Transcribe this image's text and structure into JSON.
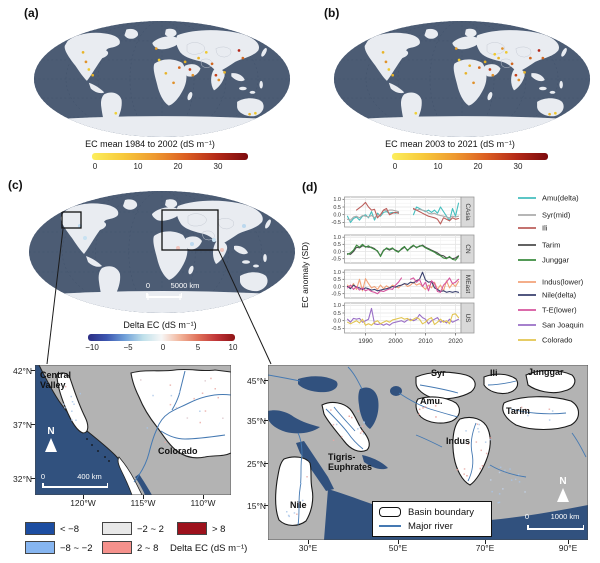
{
  "figure": {
    "panel_a": {
      "tag": "(a)",
      "caption": "EC mean 1984 to 2002 (dS m⁻¹)",
      "cbar_ticks": [
        "0",
        "10",
        "20",
        "30"
      ]
    },
    "panel_b": {
      "tag": "(b)",
      "caption": "EC mean 2003 to 2021 (dS m⁻¹)",
      "cbar_ticks": [
        "0",
        "10",
        "20",
        "30"
      ]
    },
    "panel_c": {
      "tag": "(c)",
      "caption": "Delta EC (dS m⁻¹)",
      "cbar_ticks": [
        "−10",
        "−5",
        "0",
        "5",
        "10"
      ],
      "scalebar_zero": "0",
      "scalebar_label": "5000 km"
    },
    "panel_d": {
      "tag": "(d)",
      "ylabel": "EC anomaly (SD)"
    }
  },
  "chart_data": {
    "type": "line",
    "ylabel": "EC anomaly (SD)",
    "x": [
      1984,
      1985,
      1986,
      1987,
      1988,
      1989,
      1990,
      1991,
      1992,
      1993,
      1994,
      1995,
      1996,
      1997,
      1998,
      1999,
      2000,
      2001,
      2002,
      2003,
      2004,
      2005,
      2006,
      2007,
      2008,
      2009,
      2010,
      2011,
      2012,
      2013,
      2014,
      2015,
      2016,
      2017,
      2018,
      2019,
      2020,
      2021
    ],
    "xticks": [
      1990,
      2000,
      2010,
      2020
    ],
    "yticks": [
      1.0,
      0.5,
      0.0,
      -0.5
    ],
    "ylim": [
      -0.8,
      1.15
    ],
    "xlim": [
      1983,
      2022
    ],
    "legend_position": "right",
    "grid": true,
    "facets": [
      {
        "strip": "CAsia",
        "series": [
          {
            "name": "Amu(delta)",
            "color": "#45BEBE",
            "values": [
              -0.1,
              -0.5,
              -0.25,
              -0.15,
              -0.35,
              -0.1,
              0.0,
              -0.2,
              0.2,
              -0.35,
              0.1,
              -0.1,
              0.15,
              0.2,
              0.1,
              0.15,
              0.1,
              0.15,
              null,
              null,
              null,
              null,
              0.0,
              0.5,
              0.4,
              0.3,
              0.2,
              0.3,
              0.15,
              0.3,
              0.1,
              0.5,
              0.2,
              -0.1,
              -0.4,
              0.4,
              -0.1,
              0.75
            ]
          },
          {
            "name": "Syr(mid)",
            "color": "#ABABAB",
            "values": [
              -0.3,
              -0.35,
              -0.15,
              -0.1,
              -0.2,
              -0.05,
              -0.1,
              -0.15,
              -0.05,
              -0.2,
              0.0,
              -0.05,
              0.3,
              0.25,
              0.3,
              0.3,
              0.25,
              0.2,
              null,
              null,
              null,
              null,
              0.35,
              0.3,
              0.35,
              0.3,
              0.25,
              0.1,
              0.05,
              0.1,
              0.0,
              -0.05,
              -0.1,
              -0.15,
              -0.2,
              -0.1,
              -0.15,
              -0.1
            ]
          },
          {
            "name": "Ili",
            "color": "#BC5F5C",
            "values": [
              null,
              null,
              null,
              0.3,
              0.45,
              0.6,
              0.8,
              0.5,
              0.3,
              0.35,
              -0.2,
              0.0,
              0.3,
              0.4,
              0.0,
              0.1,
              0.15,
              0.1,
              null,
              null,
              null,
              null,
              0.4,
              0.3,
              0.2,
              0.1,
              0.0,
              -0.1,
              -0.15,
              -0.2,
              -0.3,
              -0.6,
              -0.2,
              -0.3,
              -0.4,
              -0.2,
              -0.3,
              -0.25
            ]
          }
        ]
      },
      {
        "strip": "CN",
        "series": [
          {
            "name": "Tarim",
            "color": "#4D4D4D",
            "values": [
              -0.15,
              -0.2,
              0.0,
              0.3,
              0.25,
              0.4,
              0.35,
              0.3,
              0.3,
              0.2,
              0.0,
              -0.3,
              0.1,
              0.2,
              0.1,
              0.2,
              0.1,
              0.0,
              0.15,
              0.3,
              0.1,
              0.25,
              0.4,
              0.3,
              0.35,
              0.45,
              0.3,
              0.2,
              0.1,
              0.0,
              -0.1,
              -0.25,
              -0.3,
              -0.45,
              -0.4,
              -0.5,
              -0.45,
              -0.3
            ]
          },
          {
            "name": "Junggar",
            "color": "#3B8C3F",
            "values": [
              -0.2,
              -0.1,
              0.1,
              0.45,
              0.3,
              0.5,
              0.3,
              0.4,
              0.25,
              0.15,
              0.05,
              -0.35,
              0.05,
              0.25,
              0.15,
              0.25,
              0.05,
              -0.05,
              0.2,
              0.35,
              0.05,
              0.3,
              0.45,
              0.25,
              0.4,
              0.4,
              0.25,
              0.15,
              0.05,
              -0.05,
              -0.2,
              -0.3,
              -0.45,
              -0.5,
              -0.35,
              -0.55,
              -0.6,
              -0.35
            ]
          }
        ]
      },
      {
        "strip": "MEast",
        "series": [
          {
            "name": "Indus(lower)",
            "color": "#F2A379",
            "values": [
              0.1,
              -0.1,
              0.2,
              -0.2,
              0.5,
              -0.3,
              0.55,
              0.2,
              -0.1,
              0.0,
              -0.2,
              0.1,
              -0.15,
              0.05,
              -0.1,
              0.1,
              0.0,
              -0.1,
              0.1,
              0.2,
              0.0,
              0.1,
              0.3,
              0.1,
              0.2,
              0.0,
              -0.2,
              0.1,
              -0.1,
              0.3,
              -0.2,
              0.1,
              -0.3,
              0.4,
              -0.1,
              0.2,
              0.0,
              0.35
            ]
          },
          {
            "name": "Nile(delta)",
            "color": "#39406E",
            "values": [
              0.0,
              -0.15,
              0.1,
              -0.05,
              -0.1,
              -0.2,
              -0.1,
              -0.15,
              -0.25,
              -0.2,
              -0.3,
              -0.25,
              -0.2,
              -0.15,
              -0.1,
              0.0,
              -0.05,
              0.05,
              0.1,
              0.2,
              0.15,
              0.3,
              0.25,
              0.4,
              0.5,
              1.0,
              0.45,
              0.3,
              0.35,
              -0.1,
              -0.2,
              -0.35,
              -0.3,
              -0.4,
              -0.35,
              -0.4,
              -0.35,
              -0.4
            ]
          },
          {
            "name": "T-E(lower)",
            "color": "#D6559E",
            "values": [
              -0.1,
              0.1,
              -0.2,
              0.0,
              -0.25,
              -0.1,
              -0.3,
              -0.2,
              -0.35,
              -0.4,
              -0.5,
              -0.3,
              -0.35,
              -0.25,
              -0.15,
              -0.2,
              0.1,
              0.3,
              0.6,
              null,
              null,
              0.5,
              0.6,
              0.3,
              0.5,
              0.0,
              0.3,
              -0.3,
              0.4,
              0.2,
              -0.35,
              -0.4,
              0.1,
              0.3,
              0.6,
              0.2,
              0.3,
              0.5
            ]
          }
        ]
      },
      {
        "strip": "US",
        "series": [
          {
            "name": "San Joaquin",
            "color": "#9A6FC6",
            "values": [
              0.1,
              -0.1,
              0.15,
              0.1,
              0.15,
              -0.1,
              0.0,
              0.1,
              0.8,
              -0.2,
              -0.25,
              -0.2,
              -0.3,
              -0.2,
              -0.3,
              -0.15,
              -0.1,
              -0.05,
              0.0,
              -0.1,
              0.05,
              0.1,
              0.0,
              0.1,
              0.4,
              0.2,
              0.1,
              -0.2,
              0.0,
              0.1,
              0.2,
              -0.1,
              0.0,
              -0.15,
              0.1,
              -0.1,
              0.0,
              0.1
            ]
          },
          {
            "name": "Colorado",
            "color": "#E2C44F",
            "values": [
              -0.1,
              -0.2,
              -0.1,
              0.0,
              -0.15,
              0.1,
              -0.3,
              -0.2,
              -0.3,
              -0.1,
              0.0,
              -0.2,
              -0.1,
              0.0,
              -0.1,
              0.05,
              0.1,
              0.15,
              0.2,
              0.1,
              0.15,
              0.0,
              0.1,
              0.2,
              0.1,
              -0.2,
              -0.1,
              0.1,
              0.2,
              -0.25,
              -0.1,
              0.1,
              -0.1,
              0.0,
              -0.2,
              0.4,
              0.45,
              0.2
            ]
          }
        ]
      }
    ]
  },
  "map_us": {
    "labels": {
      "central_valley": "Central Valley",
      "colorado": "Colorado"
    },
    "yticks": [
      "42°N",
      "37°N",
      "32°N"
    ],
    "xticks": [
      "120°W",
      "115°W",
      "110°W"
    ],
    "north": "N",
    "scale_zero": "0",
    "scale_label": "400 km"
  },
  "map_me": {
    "labels": {
      "syr": "Syr",
      "ili": "Ili",
      "junggar": "Junggar",
      "amu": "Amu.",
      "tarim": "Tarim",
      "indus": "Indus",
      "tigris": "Tigris-Euphrates",
      "nile": "Nile"
    },
    "yticks": [
      "45°N",
      "35°N",
      "25°N",
      "15°N"
    ],
    "xticks": [
      "30°E",
      "50°E",
      "70°E",
      "90°E"
    ],
    "north": "N",
    "scale_zero": "0",
    "scale_label": "1000 km",
    "legend": {
      "basin": "Basin boundary",
      "river": "Major river"
    }
  },
  "delta_legend": {
    "title": "Delta EC (dS m⁻¹)",
    "items": [
      {
        "label": "< −8",
        "color": "#1C4DA1"
      },
      {
        "label": "−8 ~ −2",
        "color": "#86B5F0"
      },
      {
        "label": "−2 ~ 2",
        "color": "#E8E8E8"
      },
      {
        "label": "2 ~ 8",
        "color": "#F5918C"
      },
      {
        "label": "> 8",
        "color": "#9D111C"
      }
    ]
  },
  "colors": {
    "ocean_world": "#4C5C74",
    "land_world": "#E9ECF1",
    "ocean_region": "#31517E",
    "land_region": "#B3B3B3",
    "basin_fill": "#FFFFFF",
    "river": "#4579B2",
    "ec_gradient": [
      "#FCEE5C",
      "#F7C93B",
      "#EE9A30",
      "#DC5F22",
      "#B42A18",
      "#7C0A0E"
    ],
    "delta_gradient": [
      "#2C2D83",
      "#3C56B0",
      "#6F9FD8",
      "#BFE0EA",
      "#F7F7F7",
      "#F2B59B",
      "#DF7059",
      "#C03538",
      "#8F1416"
    ]
  }
}
